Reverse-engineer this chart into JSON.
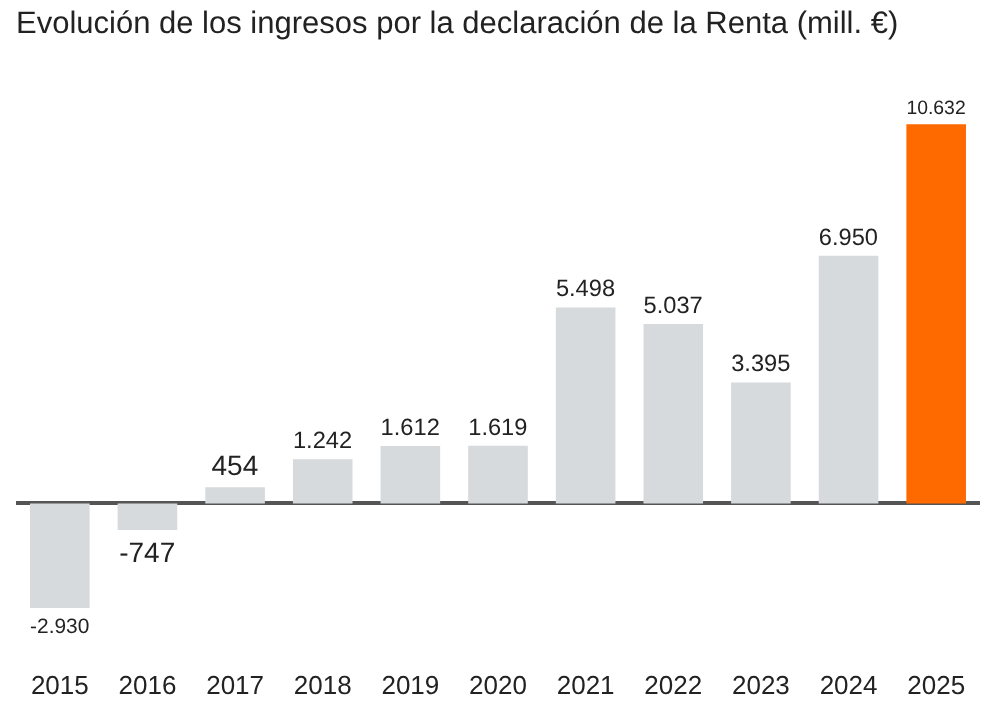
{
  "chart_data": {
    "type": "bar",
    "title": "Evolución de los ingresos por la declaración de la Renta (mill. €)",
    "categories": [
      "2015",
      "2016",
      "2017",
      "2018",
      "2019",
      "2020",
      "2021",
      "2022",
      "2023",
      "2024",
      "2025"
    ],
    "values": [
      -2930,
      -747,
      454,
      1242,
      1612,
      1619,
      5498,
      5037,
      3395,
      6950,
      10632
    ],
    "value_labels": [
      "-2.930",
      "-747",
      "454",
      "1.242",
      "1.612",
      "1.619",
      "5.498",
      "5.037",
      "3.395",
      "6.950",
      "10.632"
    ],
    "colors": [
      "#d6dadd",
      "#d6dadd",
      "#d6dadd",
      "#d6dadd",
      "#d6dadd",
      "#d6dadd",
      "#d6dadd",
      "#d6dadd",
      "#d6dadd",
      "#d6dadd",
      "#ff6a00"
    ],
    "grid": false,
    "legend": false
  }
}
